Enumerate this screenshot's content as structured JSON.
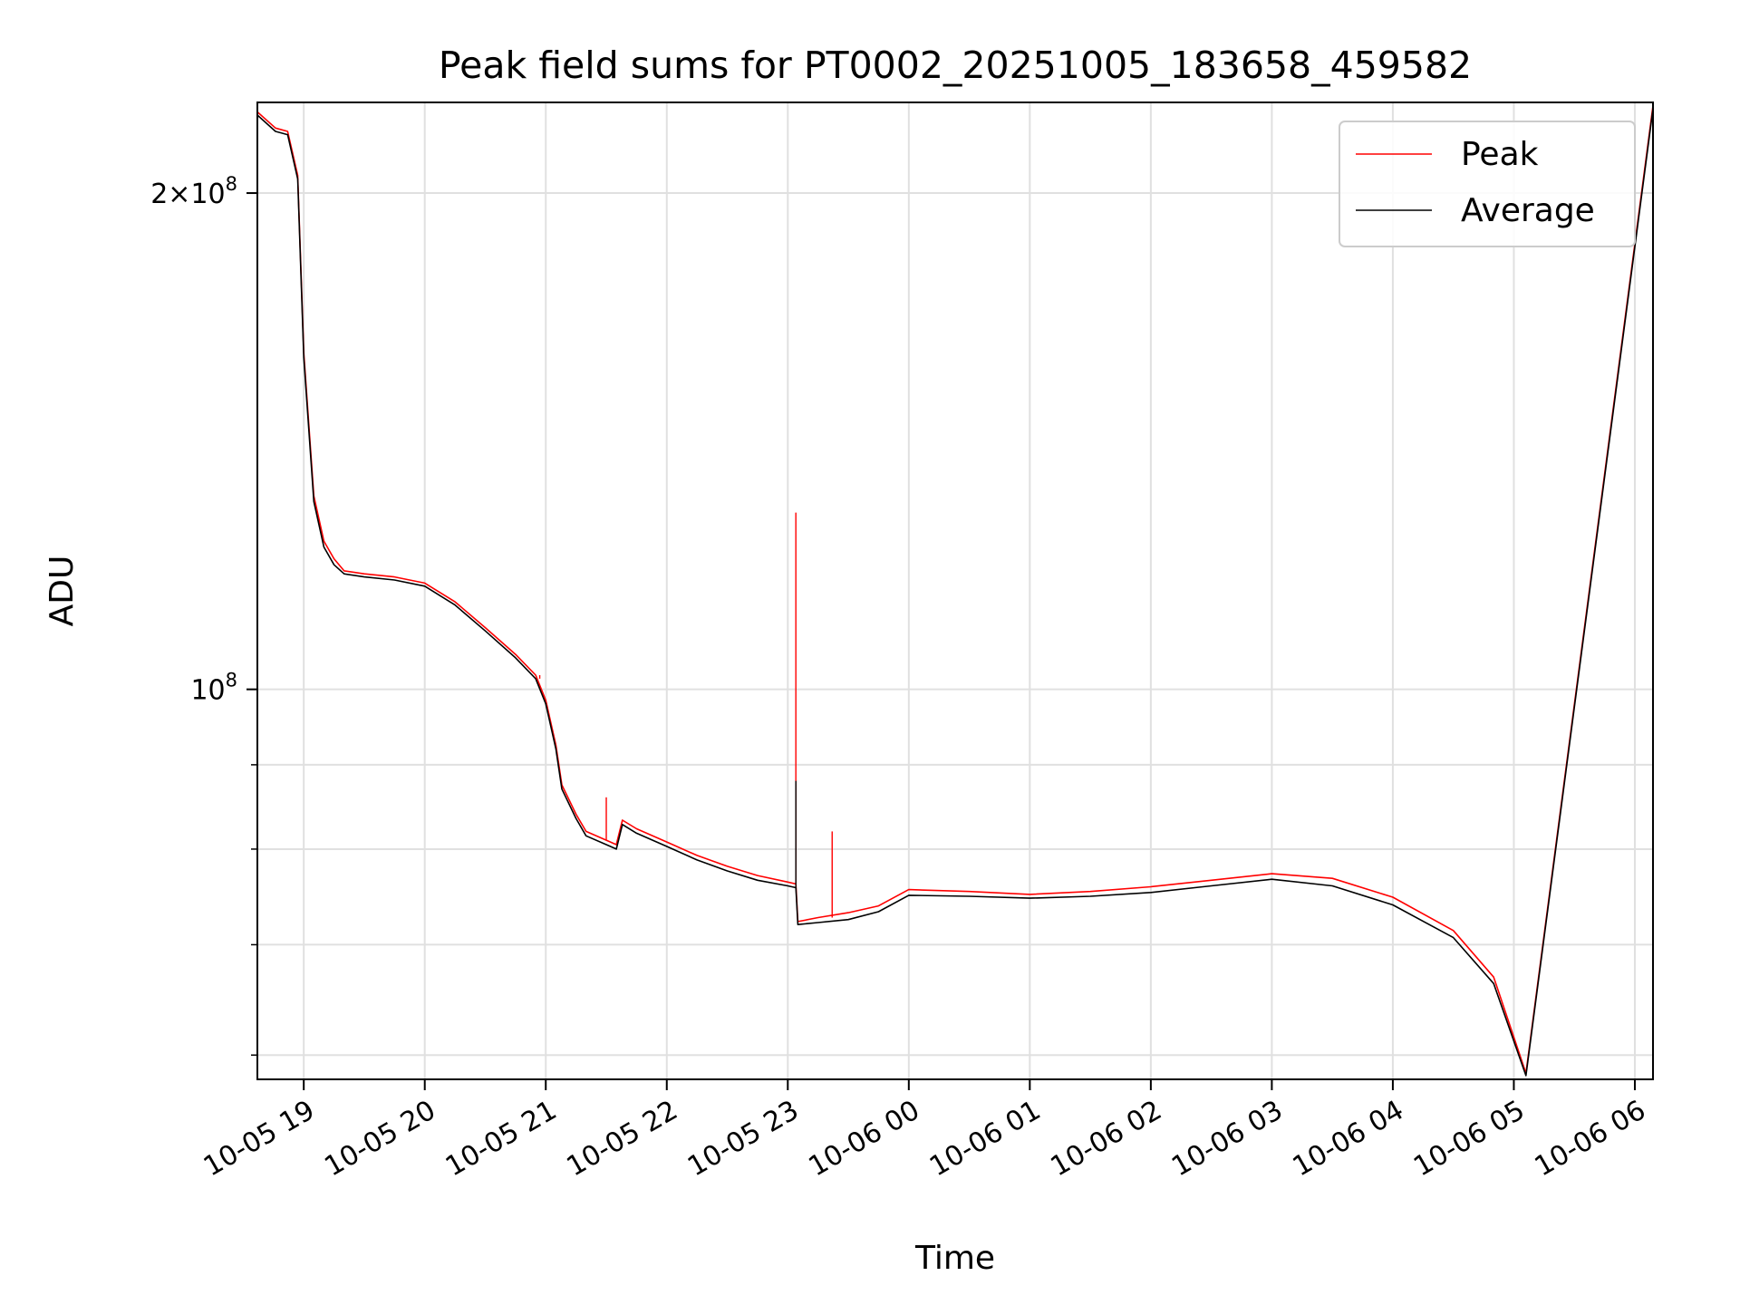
{
  "chart_data": {
    "type": "line",
    "title": "Peak field sums for PT0002_20251005_183658_459582",
    "xlabel": "Time",
    "ylabel": "ADU",
    "x_axis": {
      "type": "time",
      "range": [
        "2025-10-05 18:37",
        "2025-10-06 06:09"
      ],
      "tick_values": [
        "2025-10-05 19:00",
        "2025-10-05 20:00",
        "2025-10-05 21:00",
        "2025-10-05 22:00",
        "2025-10-05 23:00",
        "2025-10-06 00:00",
        "2025-10-06 01:00",
        "2025-10-06 02:00",
        "2025-10-06 03:00",
        "2025-10-06 04:00",
        "2025-10-06 05:00",
        "2025-10-06 06:00"
      ],
      "tick_labels": [
        "10-05 19",
        "10-05 20",
        "10-05 21",
        "10-05 22",
        "10-05 23",
        "10-06 00",
        "10-06 01",
        "10-06 02",
        "10-06 03",
        "10-06 04",
        "10-06 05",
        "10-06 06"
      ]
    },
    "y_axis": {
      "scale": "log",
      "range": [
        58000000,
        227000000
      ],
      "major_ticks": [
        100000000,
        200000000
      ],
      "major_tick_labels": [
        "10^8",
        "2×10^8"
      ],
      "minor_ticks": [
        60000000,
        70000000,
        80000000,
        90000000
      ]
    },
    "grid": true,
    "legend": {
      "position": "top-right",
      "entries": [
        "Peak",
        "Average"
      ]
    },
    "series": [
      {
        "name": "Peak",
        "color": "#ff0000",
        "x": [
          "2025-10-05 18:37",
          "2025-10-05 18:46",
          "2025-10-05 18:52",
          "2025-10-05 18:57",
          "2025-10-05 19:00",
          "2025-10-05 19:05",
          "2025-10-05 19:10",
          "2025-10-05 19:15",
          "2025-10-05 19:20",
          "2025-10-05 19:30",
          "2025-10-05 19:45",
          "2025-10-05 20:00",
          "2025-10-05 20:15",
          "2025-10-05 20:30",
          "2025-10-05 20:45",
          "2025-10-05 20:55",
          "2025-10-05 21:00",
          "2025-10-05 21:05",
          "2025-10-05 21:08",
          "2025-10-05 21:15",
          "2025-10-05 21:20",
          "2025-10-05 21:30",
          "2025-10-05 21:35",
          "2025-10-05 21:38",
          "2025-10-05 21:45",
          "2025-10-05 22:00",
          "2025-10-05 22:15",
          "2025-10-05 22:30",
          "2025-10-05 22:45",
          "2025-10-05 23:00",
          "2025-10-05 23:04",
          "2025-10-05 23:05",
          "2025-10-05 23:15",
          "2025-10-05 23:30",
          "2025-10-05 23:45",
          "2025-10-06 00:00",
          "2025-10-06 00:30",
          "2025-10-06 01:00",
          "2025-10-06 01:30",
          "2025-10-06 02:00",
          "2025-10-06 02:30",
          "2025-10-06 03:00",
          "2025-10-06 03:30",
          "2025-10-06 04:00",
          "2025-10-06 04:30",
          "2025-10-06 04:50",
          "2025-10-06 05:06",
          "2025-10-06 06:09"
        ],
        "y": [
          224000000,
          219000000,
          218000000,
          205000000,
          160000000,
          131000000,
          123000000,
          120000000,
          118000000,
          117500000,
          117000000,
          116000000,
          113000000,
          109000000,
          105000000,
          102000000,
          98500000,
          92500000,
          87500000,
          84000000,
          82000000,
          81000000,
          80500000,
          83300000,
          82300000,
          80800000,
          79300000,
          78100000,
          77100000,
          76400000,
          76200000,
          72300000,
          72700000,
          73200000,
          73900000,
          75600000,
          75400000,
          75100000,
          75400000,
          75900000,
          76600000,
          77300000,
          76800000,
          74800000,
          71400000,
          66900000,
          58500000,
          226000000
        ],
        "spikes": [
          {
            "x": "2025-10-05 23:04",
            "y": 128000000
          },
          {
            "x": "2025-10-05 23:22",
            "y": 82000000
          },
          {
            "x": "2025-10-05 21:30",
            "y": 86000000
          },
          {
            "x": "2025-10-05 20:57",
            "y": 101500000
          }
        ]
      },
      {
        "name": "Average",
        "color": "#000000",
        "x": [
          "2025-10-05 18:37",
          "2025-10-05 18:46",
          "2025-10-05 18:52",
          "2025-10-05 18:57",
          "2025-10-05 19:00",
          "2025-10-05 19:05",
          "2025-10-05 19:10",
          "2025-10-05 19:15",
          "2025-10-05 19:20",
          "2025-10-05 19:30",
          "2025-10-05 19:45",
          "2025-10-05 20:00",
          "2025-10-05 20:15",
          "2025-10-05 20:30",
          "2025-10-05 20:45",
          "2025-10-05 20:55",
          "2025-10-05 21:00",
          "2025-10-05 21:05",
          "2025-10-05 21:08",
          "2025-10-05 21:15",
          "2025-10-05 21:20",
          "2025-10-05 21:30",
          "2025-10-05 21:35",
          "2025-10-05 21:38",
          "2025-10-05 21:45",
          "2025-10-05 22:00",
          "2025-10-05 22:15",
          "2025-10-05 22:30",
          "2025-10-05 22:45",
          "2025-10-05 23:00",
          "2025-10-05 23:04",
          "2025-10-05 23:05",
          "2025-10-05 23:15",
          "2025-10-05 23:30",
          "2025-10-05 23:45",
          "2025-10-06 00:00",
          "2025-10-06 00:30",
          "2025-10-06 01:00",
          "2025-10-06 01:30",
          "2025-10-06 02:00",
          "2025-10-06 02:30",
          "2025-10-06 03:00",
          "2025-10-06 03:30",
          "2025-10-06 04:00",
          "2025-10-06 04:30",
          "2025-10-06 04:50",
          "2025-10-06 05:06",
          "2025-10-06 06:09"
        ],
        "y": [
          223000000,
          218000000,
          217000000,
          204000000,
          159000000,
          130000000,
          122000000,
          119000000,
          117500000,
          117000000,
          116500000,
          115500000,
          112500000,
          108500000,
          104500000,
          101500000,
          98000000,
          92000000,
          87000000,
          83500000,
          81500000,
          80500000,
          80000000,
          82800000,
          81800000,
          80300000,
          78800000,
          77600000,
          76600000,
          76000000,
          75800000,
          72000000,
          72200000,
          72500000,
          73300000,
          75000000,
          74900000,
          74700000,
          74900000,
          75300000,
          76000000,
          76700000,
          76000000,
          74000000,
          70700000,
          66300000,
          58300000,
          225000000
        ],
        "spikes": [
          {
            "x": "2025-10-05 23:04",
            "y": 88000000
          }
        ]
      }
    ]
  }
}
